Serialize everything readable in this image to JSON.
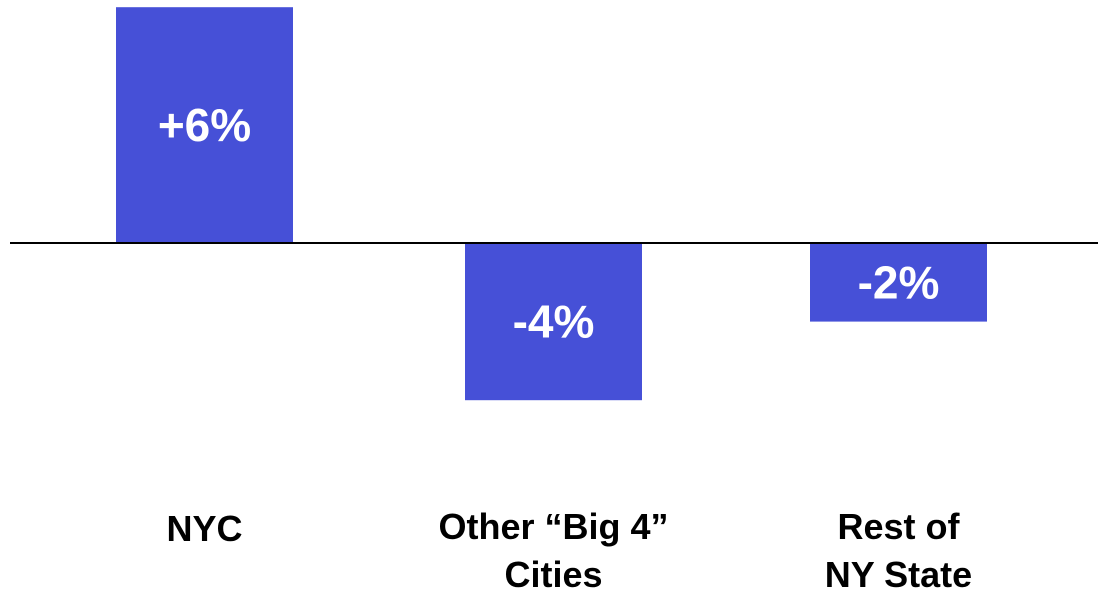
{
  "chart_data": {
    "type": "bar",
    "categories": [
      "NYC",
      "Other “Big 4” Cities",
      "Rest of NY State"
    ],
    "category_lines": [
      [
        "NYC"
      ],
      [
        "Other “Big 4”",
        "Cities"
      ],
      [
        "Rest of",
        "NY State"
      ]
    ],
    "values": [
      6,
      -4,
      -2
    ],
    "value_labels": [
      "+6%",
      "-4%",
      "-2%"
    ],
    "ylim": [
      -4,
      6
    ],
    "grid": false,
    "legend": "none",
    "colors": {
      "bar": "#4650d7",
      "axis": "#000000",
      "bar_label": "#ffffff",
      "category_label": "#000000"
    }
  }
}
